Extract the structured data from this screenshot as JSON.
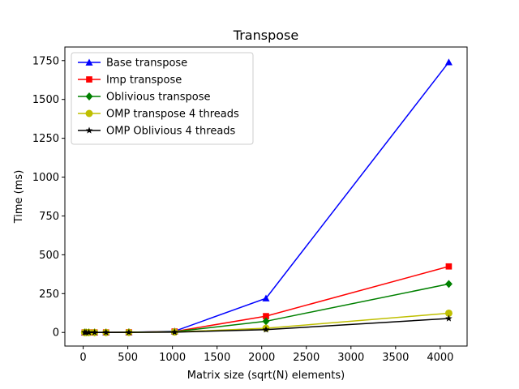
{
  "chart_data": {
    "type": "line",
    "title": "Transpose",
    "xlabel": "Matrix size (sqrt(N) elements)",
    "ylabel": "Time (ms)",
    "xlim": [
      -205,
      4301
    ],
    "ylim": [
      -87.5,
      1837.5
    ],
    "xticks": [
      0,
      500,
      1000,
      1500,
      2000,
      2500,
      3000,
      3500,
      4000
    ],
    "yticks": [
      0,
      250,
      500,
      750,
      1000,
      1250,
      1500,
      1750
    ],
    "legend_position": "upper-left",
    "grid": false,
    "x": [
      16,
      32,
      64,
      128,
      256,
      512,
      1024,
      2048,
      4096
    ],
    "series": [
      {
        "name": "Base transpose",
        "color": "#0000ff",
        "marker": "triangle",
        "values": [
          0,
          0,
          0,
          0.1,
          0.5,
          1.5,
          8,
          220,
          1740
        ]
      },
      {
        "name": "Imp transpose",
        "color": "#ff0000",
        "marker": "square",
        "values": [
          0,
          0,
          0,
          0.1,
          0.4,
          1.2,
          6,
          105,
          425
        ]
      },
      {
        "name": "Oblivious transpose",
        "color": "#008000",
        "marker": "diamond",
        "values": [
          0,
          0,
          0,
          0.1,
          0.4,
          1,
          5,
          72,
          312
        ]
      },
      {
        "name": "OMP transpose 4 threads",
        "color": "#bfbf00",
        "marker": "circle",
        "values": [
          0,
          0,
          0,
          0,
          0.2,
          0.6,
          3,
          27,
          124
        ]
      },
      {
        "name": "OMP Oblivious 4 threads",
        "color": "#000000",
        "marker": "star",
        "values": [
          0,
          0,
          0,
          0,
          0.2,
          0.5,
          2,
          18,
          90
        ]
      }
    ]
  }
}
